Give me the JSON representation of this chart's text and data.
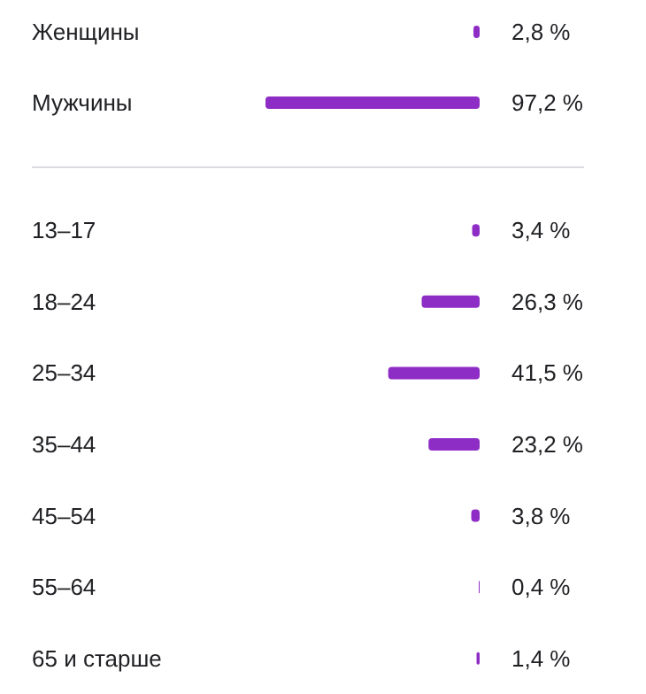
{
  "chart_data": [
    {
      "type": "bar",
      "orientation": "horizontal",
      "categories": [
        "Женщины",
        "Мужчины"
      ],
      "values": [
        2.8,
        97.2
      ],
      "value_labels": [
        "2,8 %",
        "97,2 %"
      ],
      "color": "#8e2dc5"
    },
    {
      "type": "bar",
      "orientation": "horizontal",
      "categories": [
        "13–17",
        "18–24",
        "25–34",
        "35–44",
        "45–54",
        "55–64",
        "65 и старше"
      ],
      "values": [
        3.4,
        26.3,
        41.5,
        23.2,
        3.8,
        0.4,
        1.4
      ],
      "value_labels": [
        "3,4 %",
        "26,3 %",
        "41,5 %",
        "23,2 %",
        "3,8 %",
        "0,4 %",
        "1,4 %"
      ],
      "color": "#8e2dc5"
    }
  ]
}
